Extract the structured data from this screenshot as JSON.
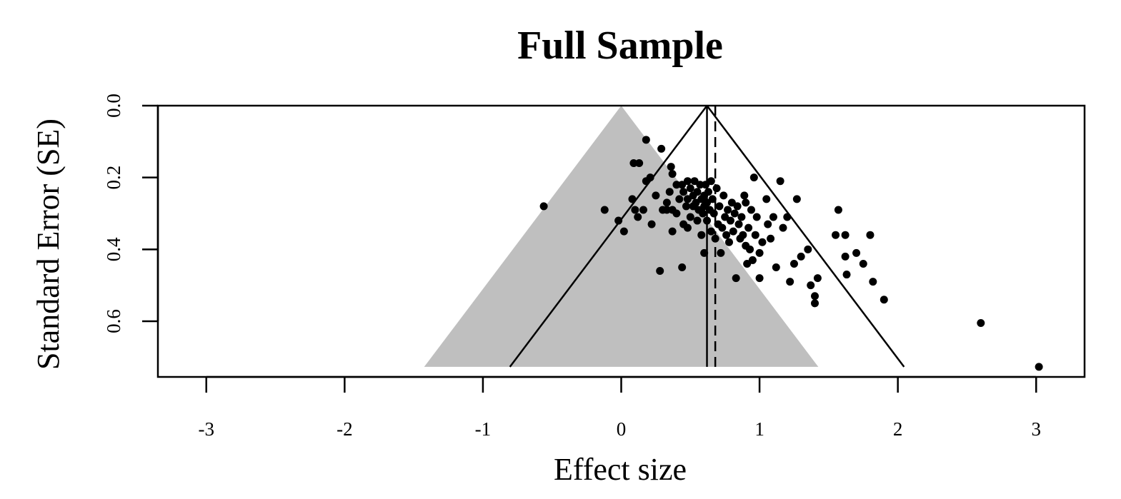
{
  "chart_data": {
    "type": "scatter",
    "title": "Full Sample",
    "xlabel": "Effect size",
    "ylabel": "Standard Error (SE)",
    "xlim": [
      -3.35,
      3.35
    ],
    "ylim": [
      0.0,
      0.755
    ],
    "y_reversed": true,
    "x_ticks": [
      -3,
      -2,
      -1,
      0,
      1,
      2,
      3
    ],
    "x_tick_labels": [
      "-3",
      "-2",
      "-1",
      "0",
      "1",
      "2",
      "3"
    ],
    "y_ticks": [
      0.0,
      0.2,
      0.4,
      0.6
    ],
    "y_tick_labels": [
      "0.0",
      "0.2",
      "0.4",
      "0.6"
    ],
    "grid": false,
    "null_funnel": {
      "center": 0.0,
      "se_max": 0.727,
      "color": "#bfbfbf"
    },
    "summary_funnel": {
      "center": 0.62,
      "se_max": 0.727
    },
    "summary_estimate": 0.62,
    "adjusted_estimate": 0.68,
    "colors": {
      "points": "#000000",
      "shade": "#bfbfbf",
      "lines": "#000000"
    },
    "points": [
      {
        "x": -0.56,
        "y": 0.28
      },
      {
        "x": -0.12,
        "y": 0.29
      },
      {
        "x": -0.02,
        "y": 0.32
      },
      {
        "x": 0.02,
        "y": 0.35
      },
      {
        "x": 0.08,
        "y": 0.26
      },
      {
        "x": 0.1,
        "y": 0.29
      },
      {
        "x": 0.12,
        "y": 0.31
      },
      {
        "x": 0.09,
        "y": 0.16
      },
      {
        "x": 0.13,
        "y": 0.16
      },
      {
        "x": 0.16,
        "y": 0.29
      },
      {
        "x": 0.18,
        "y": 0.095
      },
      {
        "x": 0.18,
        "y": 0.21
      },
      {
        "x": 0.21,
        "y": 0.2
      },
      {
        "x": 0.22,
        "y": 0.33
      },
      {
        "x": 0.25,
        "y": 0.25
      },
      {
        "x": 0.28,
        "y": 0.46
      },
      {
        "x": 0.29,
        "y": 0.12
      },
      {
        "x": 0.3,
        "y": 0.29
      },
      {
        "x": 0.33,
        "y": 0.27
      },
      {
        "x": 0.33,
        "y": 0.29
      },
      {
        "x": 0.35,
        "y": 0.24
      },
      {
        "x": 0.36,
        "y": 0.17
      },
      {
        "x": 0.37,
        "y": 0.19
      },
      {
        "x": 0.37,
        "y": 0.29
      },
      {
        "x": 0.37,
        "y": 0.35
      },
      {
        "x": 0.4,
        "y": 0.22
      },
      {
        "x": 0.4,
        "y": 0.3
      },
      {
        "x": 0.42,
        "y": 0.26
      },
      {
        "x": 0.44,
        "y": 0.22
      },
      {
        "x": 0.44,
        "y": 0.45
      },
      {
        "x": 0.45,
        "y": 0.24
      },
      {
        "x": 0.45,
        "y": 0.33
      },
      {
        "x": 0.47,
        "y": 0.28
      },
      {
        "x": 0.48,
        "y": 0.21
      },
      {
        "x": 0.48,
        "y": 0.26
      },
      {
        "x": 0.48,
        "y": 0.34
      },
      {
        "x": 0.5,
        "y": 0.23
      },
      {
        "x": 0.5,
        "y": 0.31
      },
      {
        "x": 0.52,
        "y": 0.25
      },
      {
        "x": 0.52,
        "y": 0.28
      },
      {
        "x": 0.53,
        "y": 0.21
      },
      {
        "x": 0.54,
        "y": 0.27
      },
      {
        "x": 0.55,
        "y": 0.24
      },
      {
        "x": 0.55,
        "y": 0.32
      },
      {
        "x": 0.56,
        "y": 0.29
      },
      {
        "x": 0.57,
        "y": 0.22
      },
      {
        "x": 0.58,
        "y": 0.26
      },
      {
        "x": 0.58,
        "y": 0.36
      },
      {
        "x": 0.59,
        "y": 0.3
      },
      {
        "x": 0.6,
        "y": 0.25
      },
      {
        "x": 0.6,
        "y": 0.28
      },
      {
        "x": 0.6,
        "y": 0.41
      },
      {
        "x": 0.61,
        "y": 0.22
      },
      {
        "x": 0.62,
        "y": 0.27
      },
      {
        "x": 0.62,
        "y": 0.32
      },
      {
        "x": 0.63,
        "y": 0.24
      },
      {
        "x": 0.64,
        "y": 0.29
      },
      {
        "x": 0.65,
        "y": 0.21
      },
      {
        "x": 0.65,
        "y": 0.35
      },
      {
        "x": 0.66,
        "y": 0.26
      },
      {
        "x": 0.67,
        "y": 0.3
      },
      {
        "x": 0.68,
        "y": 0.37
      },
      {
        "x": 0.69,
        "y": 0.23
      },
      {
        "x": 0.7,
        "y": 0.33
      },
      {
        "x": 0.71,
        "y": 0.28
      },
      {
        "x": 0.72,
        "y": 0.41
      },
      {
        "x": 0.73,
        "y": 0.34
      },
      {
        "x": 0.74,
        "y": 0.25
      },
      {
        "x": 0.75,
        "y": 0.31
      },
      {
        "x": 0.76,
        "y": 0.36
      },
      {
        "x": 0.77,
        "y": 0.29
      },
      {
        "x": 0.78,
        "y": 0.38
      },
      {
        "x": 0.79,
        "y": 0.32
      },
      {
        "x": 0.8,
        "y": 0.27
      },
      {
        "x": 0.81,
        "y": 0.35
      },
      {
        "x": 0.82,
        "y": 0.3
      },
      {
        "x": 0.83,
        "y": 0.48
      },
      {
        "x": 0.84,
        "y": 0.28
      },
      {
        "x": 0.85,
        "y": 0.33
      },
      {
        "x": 0.86,
        "y": 0.37
      },
      {
        "x": 0.87,
        "y": 0.31
      },
      {
        "x": 0.88,
        "y": 0.36
      },
      {
        "x": 0.89,
        "y": 0.25
      },
      {
        "x": 0.9,
        "y": 0.39
      },
      {
        "x": 0.9,
        "y": 0.27
      },
      {
        "x": 0.91,
        "y": 0.44
      },
      {
        "x": 0.92,
        "y": 0.34
      },
      {
        "x": 0.93,
        "y": 0.4
      },
      {
        "x": 0.94,
        "y": 0.29
      },
      {
        "x": 0.95,
        "y": 0.43
      },
      {
        "x": 0.96,
        "y": 0.2
      },
      {
        "x": 0.97,
        "y": 0.36
      },
      {
        "x": 0.98,
        "y": 0.31
      },
      {
        "x": 1.0,
        "y": 0.41
      },
      {
        "x": 1.0,
        "y": 0.48
      },
      {
        "x": 1.02,
        "y": 0.38
      },
      {
        "x": 1.05,
        "y": 0.26
      },
      {
        "x": 1.06,
        "y": 0.33
      },
      {
        "x": 1.08,
        "y": 0.37
      },
      {
        "x": 1.1,
        "y": 0.31
      },
      {
        "x": 1.12,
        "y": 0.45
      },
      {
        "x": 1.15,
        "y": 0.21
      },
      {
        "x": 1.17,
        "y": 0.34
      },
      {
        "x": 1.2,
        "y": 0.31
      },
      {
        "x": 1.22,
        "y": 0.49
      },
      {
        "x": 1.25,
        "y": 0.44
      },
      {
        "x": 1.27,
        "y": 0.26
      },
      {
        "x": 1.3,
        "y": 0.42
      },
      {
        "x": 1.35,
        "y": 0.4
      },
      {
        "x": 1.37,
        "y": 0.5
      },
      {
        "x": 1.4,
        "y": 0.53
      },
      {
        "x": 1.4,
        "y": 0.55
      },
      {
        "x": 1.42,
        "y": 0.48
      },
      {
        "x": 1.55,
        "y": 0.36
      },
      {
        "x": 1.57,
        "y": 0.29
      },
      {
        "x": 1.62,
        "y": 0.36
      },
      {
        "x": 1.62,
        "y": 0.42
      },
      {
        "x": 1.63,
        "y": 0.47
      },
      {
        "x": 1.7,
        "y": 0.41
      },
      {
        "x": 1.75,
        "y": 0.44
      },
      {
        "x": 1.8,
        "y": 0.36
      },
      {
        "x": 1.82,
        "y": 0.49
      },
      {
        "x": 1.9,
        "y": 0.54
      },
      {
        "x": 2.6,
        "y": 0.605
      },
      {
        "x": 3.02,
        "y": 0.727
      }
    ]
  }
}
